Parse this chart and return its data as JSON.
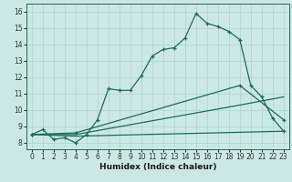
{
  "xlabel": "Humidex (Indice chaleur)",
  "bg_color": "#cce8e4",
  "grid_color": "#aad4cc",
  "line_color": "#1a6b5a",
  "xlim": [
    -0.5,
    23.5
  ],
  "ylim": [
    7.6,
    16.5
  ],
  "xticks": [
    0,
    1,
    2,
    3,
    4,
    5,
    6,
    7,
    8,
    9,
    10,
    11,
    12,
    13,
    14,
    15,
    16,
    17,
    18,
    19,
    20,
    21,
    22,
    23
  ],
  "yticks": [
    8,
    9,
    10,
    11,
    12,
    13,
    14,
    15,
    16
  ],
  "line1_x": [
    0,
    1,
    2,
    3,
    4,
    5,
    6,
    7,
    8,
    9,
    10,
    11,
    12,
    13,
    14,
    15,
    16,
    17,
    18,
    19,
    20,
    21,
    22,
    23
  ],
  "line1_y": [
    8.5,
    8.8,
    8.2,
    8.3,
    8.0,
    8.5,
    9.4,
    11.3,
    11.2,
    11.2,
    12.1,
    13.3,
    13.7,
    13.8,
    14.4,
    15.9,
    15.3,
    15.1,
    14.8,
    14.3,
    11.5,
    10.8,
    9.5,
    8.7
  ],
  "line2_x": [
    0,
    4,
    23
  ],
  "line2_y": [
    8.5,
    8.4,
    8.7
  ],
  "line3_x": [
    0,
    4,
    19,
    23
  ],
  "line3_y": [
    8.5,
    8.5,
    10.3,
    10.8
  ],
  "line4_x": [
    0,
    4,
    19,
    23
  ],
  "line4_y": [
    8.5,
    8.6,
    11.5,
    9.4
  ]
}
